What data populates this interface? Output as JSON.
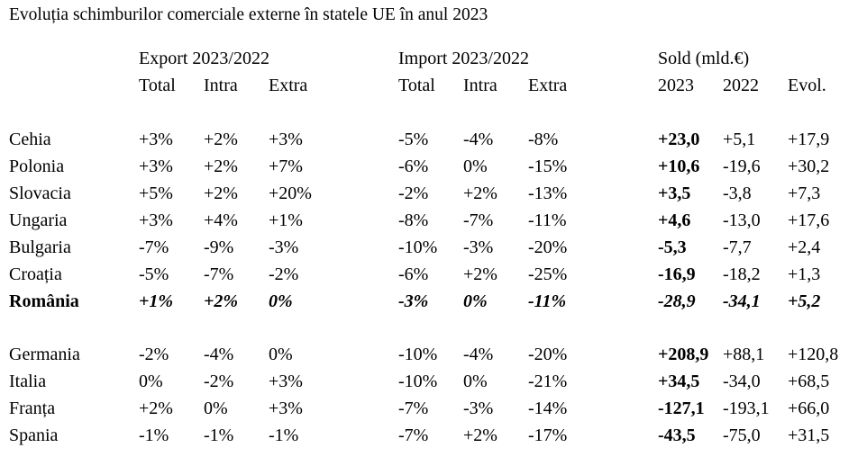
{
  "title": "Evoluția schimburilor comerciale externe în statele UE în anul 2023",
  "groups": {
    "export": "Export 2023/2022",
    "import": "Import 2023/2022",
    "sold": "Sold (mld.€)"
  },
  "subheaders": {
    "export": [
      "Total",
      "Intra",
      "Extra"
    ],
    "import": [
      "Total",
      "Intra",
      "Extra"
    ],
    "sold": [
      "2023",
      "2022",
      "Evol."
    ]
  },
  "rows": [
    {
      "country": "Cehia",
      "values": [
        "+3%",
        "+2%",
        "+3%",
        "-5%",
        "-4%",
        "-8%",
        "+23,0",
        "+5,1",
        "+17,9"
      ]
    },
    {
      "country": "Polonia",
      "values": [
        "+3%",
        "+2%",
        "+7%",
        "-6%",
        "0%",
        "-15%",
        "+10,6",
        "-19,6",
        "+30,2"
      ]
    },
    {
      "country": "Slovacia",
      "values": [
        "+5%",
        "+2%",
        "+20%",
        "-2%",
        "+2%",
        "-13%",
        "+3,5",
        "-3,8",
        "+7,3"
      ]
    },
    {
      "country": "Ungaria",
      "values": [
        "+3%",
        "+4%",
        "+1%",
        "-8%",
        "-7%",
        "-11%",
        "+4,6",
        "-13,0",
        "+17,6"
      ]
    },
    {
      "country": "Bulgaria",
      "values": [
        "-7%",
        "-9%",
        "-3%",
        "-10%",
        "-3%",
        "-20%",
        "-5,3",
        "-7,7",
        "+2,4"
      ]
    },
    {
      "country": "Croația",
      "values": [
        "-5%",
        "-7%",
        "-2%",
        "-6%",
        "+2%",
        "-25%",
        "-16,9",
        "-18,2",
        "+1,3"
      ]
    },
    {
      "country": "România",
      "values": [
        "+1%",
        "+2%",
        "0%",
        "-3%",
        "0%",
        "-11%",
        "-28,9",
        "-34,1",
        "+5,2"
      ]
    },
    {
      "country": "Germania",
      "values": [
        "-2%",
        "-4%",
        "0%",
        "-10%",
        "-4%",
        "-20%",
        "+208,9",
        "+88,1",
        "+120,8"
      ]
    },
    {
      "country": "Italia",
      "values": [
        "0%",
        "-2%",
        "+3%",
        "-10%",
        "0%",
        "-21%",
        "+34,5",
        "-34,0",
        "+68,5"
      ]
    },
    {
      "country": "Franța",
      "values": [
        "+2%",
        "0%",
        "+3%",
        "-7%",
        "-3%",
        "-14%",
        "-127,1",
        "-193,1",
        "+66,0"
      ]
    },
    {
      "country": "Spania",
      "values": [
        "-1%",
        "-1%",
        "-1%",
        "-7%",
        "+2%",
        "-17%",
        "-43,5",
        "-75,0",
        "+31,5"
      ]
    }
  ]
}
